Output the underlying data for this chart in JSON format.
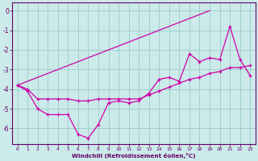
{
  "xlabel": "Windchill (Refroidissement éolien,°C)",
  "bg_color": "#cceaea",
  "line_color": "#cc00aa",
  "grid_color": "#99cccc",
  "axis_color": "#660066",
  "tick_color": "#660066",
  "xlim": [
    -0.5,
    23.5
  ],
  "ylim": [
    -6.8,
    0.4
  ],
  "yticks": [
    0,
    -1,
    -2,
    -3,
    -4,
    -5,
    -6
  ],
  "xticks": [
    0,
    1,
    2,
    3,
    4,
    5,
    6,
    7,
    8,
    9,
    10,
    11,
    12,
    13,
    14,
    15,
    16,
    17,
    18,
    19,
    20,
    21,
    22,
    23
  ],
  "line1_x": [
    0,
    1,
    2,
    3,
    4,
    5,
    6,
    7,
    8,
    9,
    10,
    11,
    12,
    13,
    14,
    15,
    16,
    17,
    18,
    19,
    20,
    21,
    22,
    23
  ],
  "line1_y": [
    -3.8,
    -4.1,
    -5.0,
    -5.3,
    -5.3,
    -5.3,
    -6.3,
    -6.5,
    -5.8,
    -4.7,
    -4.6,
    -4.7,
    -4.6,
    -4.2,
    -3.5,
    -3.4,
    -3.6,
    -2.2,
    -2.6,
    -2.4,
    -2.5,
    -0.8,
    -2.5,
    -3.3
  ],
  "line2_x": [
    0,
    1,
    2,
    3,
    4,
    5,
    6,
    7,
    8,
    9,
    10,
    11,
    12,
    13,
    14,
    15,
    16,
    17,
    18,
    19,
    20,
    21,
    22,
    23
  ],
  "line2_y": [
    -3.8,
    -4.0,
    -4.5,
    -4.5,
    -4.5,
    -4.5,
    -4.6,
    -4.6,
    -4.5,
    -4.5,
    -4.5,
    -4.5,
    -4.5,
    -4.3,
    -4.1,
    -3.9,
    -3.7,
    -3.5,
    -3.4,
    -3.2,
    -3.1,
    -2.9,
    -2.9,
    -2.8
  ],
  "line3_x": [
    0,
    19
  ],
  "line3_y": [
    -3.8,
    0.0
  ]
}
